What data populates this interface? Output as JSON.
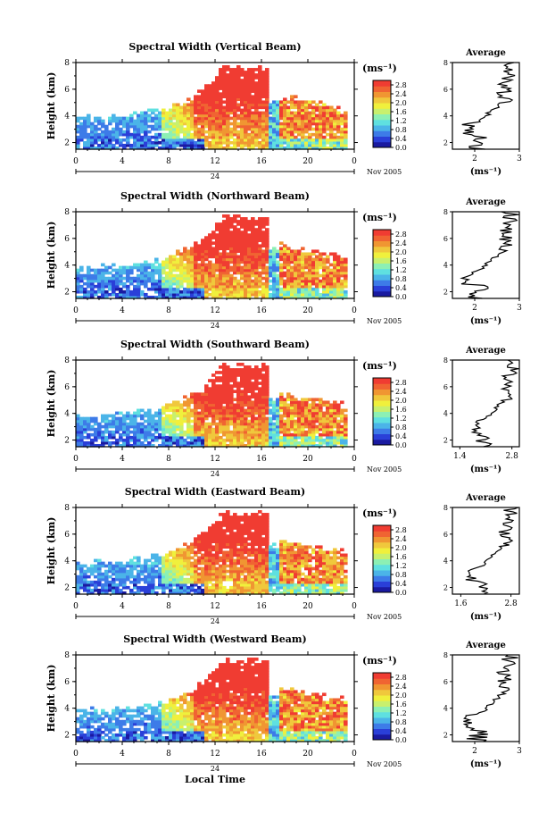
{
  "figure": {
    "x_axis_label": "Local Time",
    "day_label": "24",
    "month_label": "Nov 2005",
    "y_axis_label": "Height (km)",
    "units_label": "(ms⁻¹)",
    "avg_title": "Average",
    "avg_xlabel": "(ms⁻¹)"
  },
  "colormap": [
    "#1a1aa0",
    "#2a3fd8",
    "#3d7be8",
    "#4bb4e8",
    "#5fe0e0",
    "#8cf0b4",
    "#c8f06e",
    "#f0f03c",
    "#f0c83c",
    "#f09632",
    "#f06432",
    "#f03c32"
  ],
  "chart_data": [
    {
      "type": "heatmap",
      "title": "Spectral Width (Vertical Beam)",
      "xlabel": "Local Time",
      "ylabel": "Height (km)",
      "xlim": [
        0,
        24
      ],
      "xticks": [
        "0",
        "4",
        "8",
        "12",
        "16",
        "20",
        "0"
      ],
      "ylim": [
        1.5,
        8
      ],
      "yticks": [
        "2",
        "4",
        "6",
        "8"
      ],
      "colorbar": {
        "label": "(ms⁻¹)",
        "ticks": [
          "2.8",
          "2.4",
          "2.0",
          "1.6",
          "1.2",
          "0.8",
          "0.4",
          "0.0"
        ]
      },
      "average_profile": {
        "title": "Average",
        "xlabel": "(ms⁻¹)",
        "xticks": [
          "2",
          "3"
        ],
        "xlim": [
          1.5,
          3
        ],
        "yticks": [
          "2",
          "4",
          "6",
          "8"
        ]
      }
    },
    {
      "type": "heatmap",
      "title": "Spectral Width (Northward Beam)",
      "xlabel": "Local Time",
      "ylabel": "Height (km)",
      "xlim": [
        0,
        24
      ],
      "xticks": [
        "0",
        "4",
        "8",
        "12",
        "16",
        "20",
        "0"
      ],
      "ylim": [
        1.5,
        8
      ],
      "yticks": [
        "2",
        "4",
        "6",
        "8"
      ],
      "colorbar": {
        "label": "(ms⁻¹)",
        "ticks": [
          "2.8",
          "2.4",
          "2.0",
          "1.6",
          "1.2",
          "0.8",
          "0.4",
          "0.0"
        ]
      },
      "average_profile": {
        "title": "Average",
        "xlabel": "(ms⁻¹)",
        "xticks": [
          "2",
          "3"
        ],
        "xlim": [
          1.5,
          3
        ],
        "yticks": [
          "2",
          "4",
          "6",
          "8"
        ]
      }
    },
    {
      "type": "heatmap",
      "title": "Spectral Width (Southward Beam)",
      "xlabel": "Local Time",
      "ylabel": "Height (km)",
      "xlim": [
        0,
        24
      ],
      "xticks": [
        "0",
        "4",
        "8",
        "12",
        "16",
        "20",
        "0"
      ],
      "ylim": [
        1.5,
        8
      ],
      "yticks": [
        "2",
        "4",
        "6",
        "8"
      ],
      "colorbar": {
        "label": "(ms⁻¹)",
        "ticks": [
          "2.8",
          "2.4",
          "2.0",
          "1.6",
          "1.2",
          "0.8",
          "0.4",
          "0.0"
        ]
      },
      "average_profile": {
        "title": "Average",
        "xlabel": "(ms⁻¹)",
        "xticks": [
          "1.4",
          "2.8"
        ],
        "xlim": [
          1.2,
          3
        ],
        "yticks": [
          "2",
          "4",
          "6",
          "8"
        ]
      }
    },
    {
      "type": "heatmap",
      "title": "Spectral Width (Eastward Beam)",
      "xlabel": "Local Time",
      "ylabel": "Height (km)",
      "xlim": [
        0,
        24
      ],
      "xticks": [
        "0",
        "4",
        "8",
        "12",
        "16",
        "20",
        "0"
      ],
      "ylim": [
        1.5,
        8
      ],
      "yticks": [
        "2",
        "4",
        "6",
        "8"
      ],
      "colorbar": {
        "label": "(ms⁻¹)",
        "ticks": [
          "2.8",
          "2.4",
          "2.0",
          "1.6",
          "1.2",
          "0.8",
          "0.4",
          "0.0"
        ]
      },
      "average_profile": {
        "title": "Average",
        "xlabel": "(ms⁻¹)",
        "xticks": [
          "1.6",
          "2.8"
        ],
        "xlim": [
          1.4,
          3
        ],
        "yticks": [
          "2",
          "4",
          "6",
          "8"
        ]
      }
    },
    {
      "type": "heatmap",
      "title": "Spectral Width (Westward Beam)",
      "xlabel": "Local Time",
      "ylabel": "Height (km)",
      "xlim": [
        0,
        24
      ],
      "xticks": [
        "0",
        "4",
        "8",
        "12",
        "16",
        "20",
        "0"
      ],
      "ylim": [
        1.5,
        8
      ],
      "yticks": [
        "2",
        "4",
        "6",
        "8"
      ],
      "colorbar": {
        "label": "(ms⁻¹)",
        "ticks": [
          "2.8",
          "2.4",
          "2.0",
          "1.6",
          "1.2",
          "0.8",
          "0.4",
          "0.0"
        ]
      },
      "average_profile": {
        "title": "Average",
        "xlabel": "(ms⁻¹)",
        "xticks": [
          "2",
          "3"
        ],
        "xlim": [
          1.5,
          3
        ],
        "yticks": [
          "2",
          "4",
          "6",
          "8"
        ]
      }
    }
  ]
}
